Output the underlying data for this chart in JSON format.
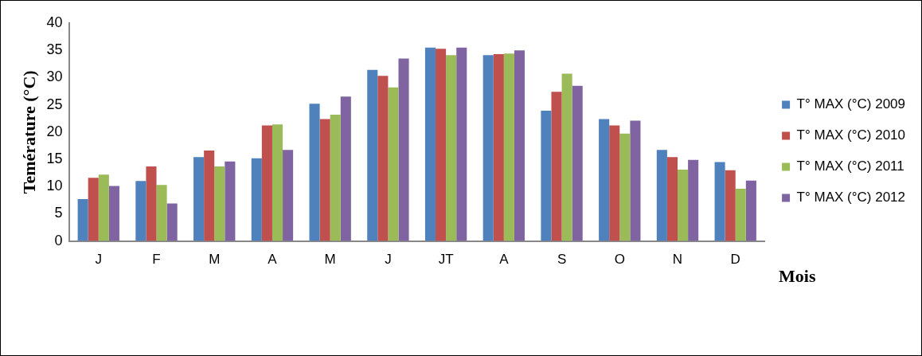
{
  "chart_data": {
    "type": "bar",
    "xlabel": "Mois",
    "ylabel": "Temérature (°C)",
    "categories": [
      "J",
      "F",
      "M",
      "A",
      "M",
      "J",
      "JT",
      "A",
      "S",
      "O",
      "N",
      "D"
    ],
    "series": [
      {
        "name": "T° MAX (°C) 2009",
        "color": "#4f81bd",
        "values": [
          7.7,
          11.0,
          15.4,
          15.2,
          25.2,
          31.4,
          35.5,
          34.1,
          23.9,
          22.4,
          16.7,
          14.5
        ]
      },
      {
        "name": "T° MAX (°C) 2010",
        "color": "#c0504d",
        "values": [
          11.6,
          13.7,
          16.6,
          21.2,
          22.4,
          30.3,
          35.3,
          34.3,
          27.4,
          21.2,
          15.4,
          13.0
        ]
      },
      {
        "name": "T° MAX (°C) 2011",
        "color": "#9bbb59",
        "values": [
          12.2,
          10.3,
          13.7,
          21.4,
          23.2,
          28.2,
          34.1,
          34.4,
          30.7,
          19.7,
          13.1,
          9.6
        ]
      },
      {
        "name": "T° MAX (°C) 2012",
        "color": "#8064a2",
        "values": [
          10.1,
          6.9,
          14.6,
          16.7,
          26.5,
          33.5,
          35.5,
          35.0,
          28.5,
          22.1,
          14.9,
          11.1
        ]
      }
    ],
    "ylim": [
      0,
      40
    ],
    "yticks": [
      0,
      5,
      10,
      15,
      20,
      25,
      30,
      35,
      40
    ],
    "grid": false,
    "legend": "right"
  }
}
